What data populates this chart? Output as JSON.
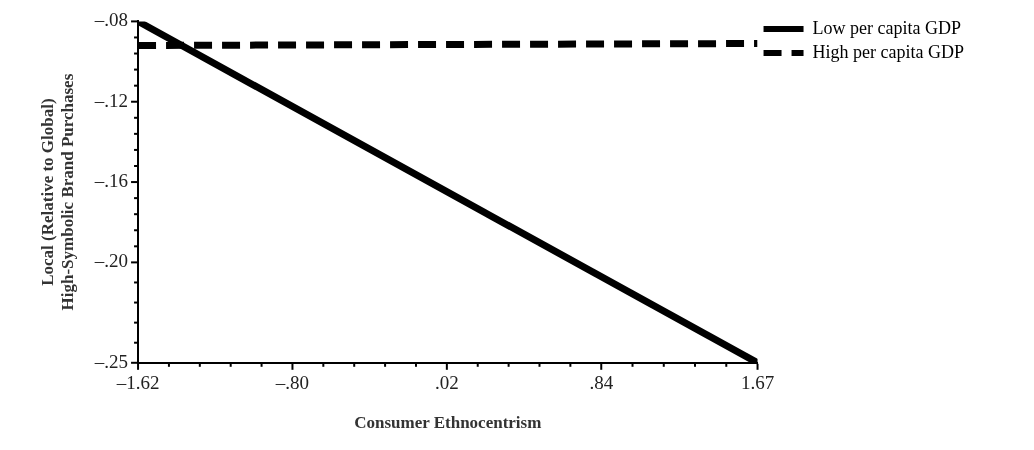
{
  "chart_data": {
    "type": "line",
    "xlabel": "Consumer Ethnocentrism",
    "ylabel": "Local (Relative to Global)\nHigh-Symbolic Brand Purchases",
    "x": [
      -1.62,
      1.67
    ],
    "series": [
      {
        "name": "Low per capita GDP",
        "color": "#000000",
        "line_style": "solid",
        "values": [
          -0.08,
          -0.25
        ]
      },
      {
        "name": "High per capita GDP",
        "color": "#000000",
        "line_style": "dashed",
        "values": [
          -0.092,
          -0.091
        ]
      }
    ],
    "xlim": [
      -1.62,
      1.67
    ],
    "xticks": [
      {
        "value": -1.62,
        "label": "–1.62"
      },
      {
        "value": -1.456,
        "label": null
      },
      {
        "value": -1.292,
        "label": null
      },
      {
        "value": -1.128,
        "label": null
      },
      {
        "value": -0.964,
        "label": null
      },
      {
        "value": -0.8,
        "label": "–.80"
      },
      {
        "value": -0.636,
        "label": null
      },
      {
        "value": -0.472,
        "label": null
      },
      {
        "value": -0.308,
        "label": null
      },
      {
        "value": -0.144,
        "label": null
      },
      {
        "value": 0.02,
        "label": ".02"
      },
      {
        "value": 0.184,
        "label": null
      },
      {
        "value": 0.348,
        "label": null
      },
      {
        "value": 0.512,
        "label": null
      },
      {
        "value": 0.676,
        "label": null
      },
      {
        "value": 0.84,
        "label": ".84"
      },
      {
        "value": 1.006,
        "label": null
      },
      {
        "value": 1.172,
        "label": null
      },
      {
        "value": 1.338,
        "label": null
      },
      {
        "value": 1.504,
        "label": null
      },
      {
        "value": 1.67,
        "label": "1.67"
      }
    ],
    "ylim": [
      -0.25,
      -0.08
    ],
    "yticks": [
      {
        "value": -0.08,
        "label": "–.08"
      },
      {
        "value": -0.088,
        "label": null
      },
      {
        "value": -0.096,
        "label": null
      },
      {
        "value": -0.104,
        "label": null
      },
      {
        "value": -0.112,
        "label": null
      },
      {
        "value": -0.12,
        "label": "–.12"
      },
      {
        "value": -0.128,
        "label": null
      },
      {
        "value": -0.136,
        "label": null
      },
      {
        "value": -0.144,
        "label": null
      },
      {
        "value": -0.152,
        "label": null
      },
      {
        "value": -0.16,
        "label": "–.16"
      },
      {
        "value": -0.168,
        "label": null
      },
      {
        "value": -0.176,
        "label": null
      },
      {
        "value": -0.184,
        "label": null
      },
      {
        "value": -0.192,
        "label": null
      },
      {
        "value": -0.2,
        "label": "–.20"
      },
      {
        "value": -0.21,
        "label": null
      },
      {
        "value": -0.22,
        "label": null
      },
      {
        "value": -0.23,
        "label": null
      },
      {
        "value": -0.24,
        "label": null
      },
      {
        "value": -0.25,
        "label": "–.25"
      }
    ],
    "grid": false,
    "legend": "right",
    "marker": "none"
  }
}
